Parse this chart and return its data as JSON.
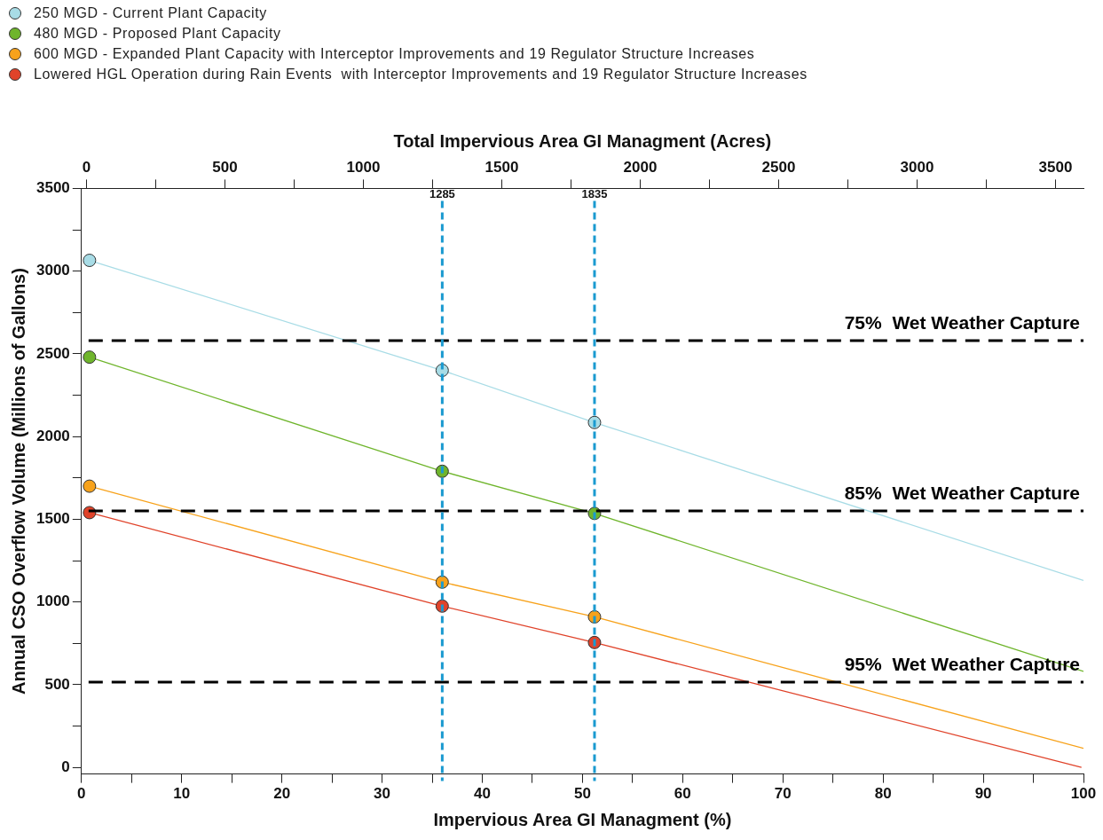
{
  "chart_data": {
    "type": "scatter",
    "xlabel": "Impervious Area GI Managment (%)",
    "ylabel": "Annual CSO Overflow Volume (Millions of Gallons)",
    "x2label": "Total Impervious Area GI Managment (Acres)",
    "xlim": [
      0,
      100
    ],
    "xticks": [
      0,
      {
        "value": 5,
        "label": null
      },
      10,
      {
        "value": 15,
        "label": null
      },
      20,
      {
        "value": 25,
        "label": null
      },
      30,
      {
        "value": 35,
        "label": null
      },
      40,
      {
        "value": 45,
        "label": null
      },
      50,
      {
        "value": 55,
        "label": null
      },
      60,
      {
        "value": 65,
        "label": null
      },
      70,
      {
        "value": 75,
        "label": null
      },
      80,
      {
        "value": 85,
        "label": null
      },
      90,
      {
        "value": 95,
        "label": null
      },
      100
    ],
    "x2lim": [
      -18,
      3601
    ],
    "x2ticks": [
      0,
      {
        "value": 250,
        "label": null
      },
      500,
      {
        "value": 750,
        "label": null
      },
      1000,
      {
        "value": 1250,
        "label": null
      },
      1500,
      {
        "value": 1750,
        "label": null
      },
      2000,
      {
        "value": 2250,
        "label": null
      },
      2500,
      {
        "value": 2750,
        "label": null
      },
      3000,
      {
        "value": 3250,
        "label": null
      },
      3500
    ],
    "ylim": [
      -40,
      3500
    ],
    "yticks": [
      0,
      {
        "value": 250,
        "label": null
      },
      500,
      {
        "value": 750,
        "label": null
      },
      1000,
      {
        "value": 1250,
        "label": null
      },
      1500,
      {
        "value": 1750,
        "label": null
      },
      2000,
      {
        "value": 2250,
        "label": null
      },
      2500,
      {
        "value": 2750,
        "label": null
      },
      3000,
      {
        "value": 3250,
        "label": null
      },
      3500
    ],
    "grid": false,
    "legend": "top left",
    "marker": "circle",
    "series": [
      {
        "name": "250 MGD - Current Plant Capacity",
        "color": "#a8dce6",
        "x": [
          0.8,
          36,
          51.2
        ],
        "values": [
          3065,
          2400,
          2085
        ]
      },
      {
        "name": "480 MGD - Proposed Plant Capacity",
        "color": "#6fb52c",
        "x": [
          0.8,
          36,
          51.2
        ],
        "values": [
          2480,
          1790,
          1535
        ]
      },
      {
        "name": "600 MGD - Expanded Plant Capacity with Interceptor Improvements and 19 Regulator Structure Increases",
        "color": "#f7a21b",
        "x": [
          0.8,
          36,
          51.2
        ],
        "values": [
          1700,
          1120,
          910
        ]
      },
      {
        "name": "Lowered HGL Operation during Rain Events  with Interceptor Improvements and 19 Regulator Structure Increases",
        "color": "#e0432a",
        "x": [
          0.8,
          36,
          51.2
        ],
        "values": [
          1540,
          975,
          755
        ]
      },
      {
        "type": "line",
        "marker": "none",
        "color": "#a8dce6",
        "x": [
          0.8,
          36,
          51.2,
          100
        ],
        "values": [
          3065,
          2400,
          2085,
          1130
        ]
      },
      {
        "type": "line",
        "marker": "none",
        "color": "#6fb52c",
        "x": [
          0.8,
          36,
          51.2,
          100
        ],
        "values": [
          2480,
          1790,
          1535,
          580
        ]
      },
      {
        "type": "line",
        "marker": "none",
        "color": "#f7a21b",
        "x": [
          0.8,
          36,
          51.2,
          100
        ],
        "values": [
          1700,
          1120,
          910,
          115
        ]
      },
      {
        "type": "line",
        "marker": "none",
        "color": "#e0432a",
        "x": [
          0.8,
          36,
          51.2,
          99.8
        ],
        "values": [
          1540,
          975,
          755,
          0
        ]
      }
    ],
    "ref_lines": [
      {
        "axis": "y",
        "value": 2580,
        "label": "75%  Wet Weather Capture",
        "color": "#000000",
        "line_style": "dashed"
      },
      {
        "axis": "y",
        "value": 1550,
        "label": "85%  Wet Weather Capture",
        "color": "#000000",
        "line_style": "dashed"
      },
      {
        "axis": "y",
        "value": 515,
        "label": "95%  Wet Weather Capture",
        "color": "#000000",
        "line_style": "dashed"
      },
      {
        "axis": "x2",
        "value": 1285,
        "label": "1285",
        "color": "#1a9ad0",
        "line_style": "dashed"
      },
      {
        "axis": "x2",
        "value": 1835,
        "label": "1835",
        "color": "#1a9ad0",
        "line_style": "dashed"
      }
    ]
  }
}
